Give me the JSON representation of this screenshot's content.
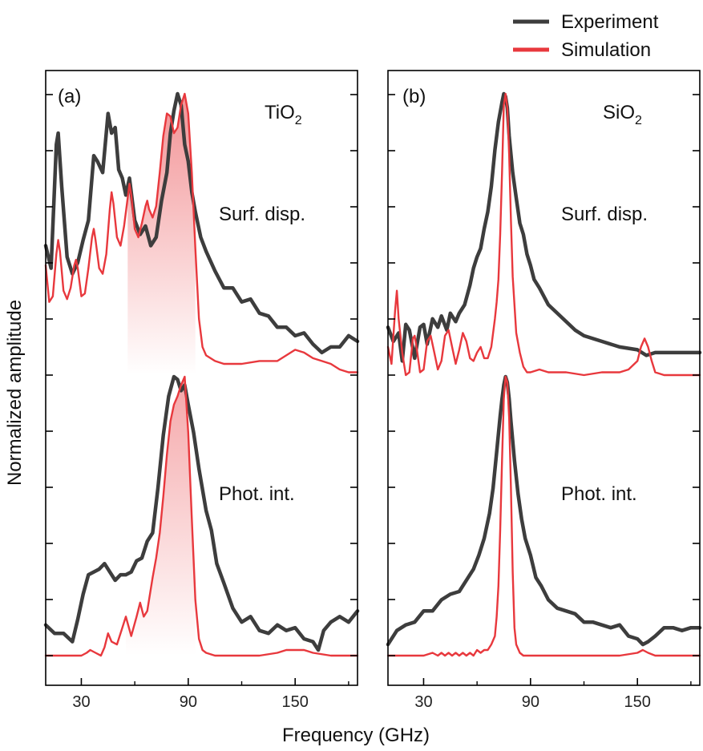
{
  "legend": [
    {
      "label": "Experiment",
      "color": "#3d3d3d"
    },
    {
      "label": "Simulation",
      "color": "#e8383d"
    }
  ],
  "axes": {
    "xlabel": "Frequency (GHz)",
    "ylabel": "Normalized amplitude",
    "xlim": [
      10,
      185
    ],
    "xticks": [
      30,
      90,
      150
    ],
    "xtick_labels": [
      "30",
      "90",
      "150"
    ]
  },
  "chart_data": [
    {
      "type": "line",
      "panel_label": "(a)",
      "material": "TiO",
      "material_sub": "2",
      "xlim": [
        10,
        185
      ],
      "traces": [
        {
          "name": "Experiment",
          "trace": "Surf. disp.",
          "x": [
            10,
            13,
            16,
            17,
            19,
            22,
            25,
            28,
            31,
            34,
            37,
            39,
            42,
            45,
            47,
            49,
            51,
            53,
            55,
            57,
            60,
            63,
            66,
            69,
            72,
            75,
            78,
            80,
            82,
            84,
            86,
            88,
            90,
            92,
            94,
            97,
            100,
            105,
            110,
            115,
            120,
            125,
            130,
            135,
            140,
            145,
            150,
            155,
            160,
            165,
            170,
            175,
            180,
            185
          ],
          "y": [
            0.46,
            0.38,
            0.82,
            0.86,
            0.67,
            0.42,
            0.36,
            0.4,
            0.48,
            0.55,
            0.78,
            0.76,
            0.72,
            0.93,
            0.86,
            0.88,
            0.73,
            0.7,
            0.64,
            0.7,
            0.55,
            0.5,
            0.53,
            0.46,
            0.49,
            0.62,
            0.72,
            0.86,
            0.94,
            1.0,
            0.96,
            0.82,
            0.76,
            0.65,
            0.58,
            0.49,
            0.44,
            0.37,
            0.31,
            0.31,
            0.26,
            0.27,
            0.22,
            0.21,
            0.17,
            0.17,
            0.14,
            0.15,
            0.11,
            0.08,
            0.1,
            0.1,
            0.14,
            0.12
          ]
        },
        {
          "name": "Simulation",
          "trace": "Surf. disp.",
          "x": [
            10,
            12,
            14,
            16,
            17,
            18,
            20,
            22,
            24,
            26,
            27,
            28,
            30,
            32,
            34,
            36,
            37,
            38,
            40,
            42,
            44,
            46,
            47,
            48,
            50,
            52,
            54,
            56,
            57,
            58,
            60,
            62,
            64,
            66,
            67,
            68,
            70,
            72,
            74,
            76,
            78,
            80,
            82,
            84,
            86,
            88,
            90,
            92,
            94,
            96,
            98,
            100,
            105,
            110,
            115,
            120,
            130,
            140,
            145,
            150,
            155,
            160,
            165,
            170,
            175,
            180,
            185
          ],
          "y": [
            0.39,
            0.26,
            0.28,
            0.43,
            0.48,
            0.44,
            0.3,
            0.27,
            0.31,
            0.39,
            0.41,
            0.38,
            0.28,
            0.29,
            0.38,
            0.49,
            0.52,
            0.48,
            0.38,
            0.36,
            0.43,
            0.59,
            0.65,
            0.61,
            0.49,
            0.46,
            0.53,
            0.63,
            0.68,
            0.64,
            0.52,
            0.49,
            0.54,
            0.6,
            0.62,
            0.59,
            0.56,
            0.6,
            0.72,
            0.85,
            0.93,
            0.92,
            0.86,
            0.88,
            0.96,
            1.0,
            0.93,
            0.72,
            0.45,
            0.2,
            0.1,
            0.07,
            0.05,
            0.04,
            0.04,
            0.04,
            0.05,
            0.05,
            0.07,
            0.09,
            0.08,
            0.06,
            0.05,
            0.04,
            0.02,
            0.01,
            0.01
          ]
        },
        {
          "name": "Experiment",
          "trace": "Phot. int.",
          "x": [
            10,
            15,
            20,
            25,
            28,
            31,
            34,
            37,
            40,
            43,
            46,
            49,
            52,
            55,
            58,
            61,
            64,
            67,
            70,
            73,
            76,
            79,
            82,
            84,
            86,
            88,
            90,
            93,
            96,
            100,
            103,
            106,
            110,
            115,
            120,
            125,
            130,
            135,
            140,
            145,
            150,
            155,
            160,
            163,
            166,
            170,
            175,
            180,
            185
          ],
          "y": [
            0.11,
            0.08,
            0.08,
            0.05,
            0.13,
            0.22,
            0.29,
            0.3,
            0.31,
            0.33,
            0.3,
            0.27,
            0.29,
            0.29,
            0.3,
            0.34,
            0.35,
            0.41,
            0.44,
            0.6,
            0.79,
            0.93,
            1.0,
            0.99,
            0.95,
            0.97,
            0.9,
            0.8,
            0.67,
            0.52,
            0.45,
            0.33,
            0.26,
            0.17,
            0.12,
            0.14,
            0.09,
            0.08,
            0.11,
            0.09,
            0.1,
            0.06,
            0.05,
            0.02,
            0.09,
            0.12,
            0.14,
            0.12,
            0.16
          ]
        },
        {
          "name": "Simulation",
          "trace": "Phot. int.",
          "x": [
            10,
            20,
            30,
            33,
            35,
            38,
            41,
            43,
            45,
            47,
            50,
            53,
            55,
            58,
            61,
            63,
            65,
            67,
            70,
            72,
            74,
            76,
            78,
            80,
            82,
            84,
            86,
            88,
            90,
            92,
            94,
            96,
            98,
            100,
            105,
            110,
            120,
            130,
            140,
            145,
            150,
            155,
            160,
            170,
            185
          ],
          "y": [
            0.0,
            0.0,
            0.0,
            0.01,
            0.02,
            0.01,
            0.0,
            0.03,
            0.08,
            0.05,
            0.04,
            0.1,
            0.14,
            0.07,
            0.14,
            0.19,
            0.14,
            0.16,
            0.28,
            0.35,
            0.44,
            0.57,
            0.72,
            0.84,
            0.9,
            0.93,
            0.97,
            1.0,
            0.8,
            0.49,
            0.2,
            0.06,
            0.02,
            0.01,
            0.0,
            0.0,
            0.0,
            0.0,
            0.01,
            0.02,
            0.02,
            0.02,
            0.01,
            0.0,
            0.0
          ]
        }
      ]
    },
    {
      "type": "line",
      "panel_label": "(b)",
      "material": "SiO",
      "material_sub": "2",
      "xlim": [
        10,
        185
      ],
      "traces": [
        {
          "name": "Experiment",
          "trace": "Surf. disp.",
          "x": [
            10,
            13,
            16,
            18,
            20,
            22,
            25,
            28,
            30,
            32,
            35,
            38,
            40,
            43,
            45,
            48,
            50,
            53,
            56,
            58,
            60,
            62,
            64,
            66,
            68,
            70,
            72,
            74,
            75,
            76,
            77,
            78,
            80,
            82,
            84,
            86,
            88,
            90,
            92,
            95,
            100,
            105,
            110,
            115,
            120,
            130,
            140,
            150,
            155,
            160,
            170,
            185
          ],
          "y": [
            0.17,
            0.12,
            0.15,
            0.05,
            0.18,
            0.16,
            0.06,
            0.17,
            0.18,
            0.11,
            0.2,
            0.17,
            0.21,
            0.16,
            0.22,
            0.19,
            0.22,
            0.25,
            0.32,
            0.38,
            0.42,
            0.45,
            0.52,
            0.58,
            0.67,
            0.8,
            0.9,
            0.97,
            1.0,
            0.99,
            0.95,
            0.85,
            0.72,
            0.63,
            0.54,
            0.5,
            0.43,
            0.39,
            0.34,
            0.31,
            0.25,
            0.22,
            0.19,
            0.16,
            0.14,
            0.12,
            0.1,
            0.09,
            0.07,
            0.08,
            0.08,
            0.08
          ]
        },
        {
          "name": "Simulation",
          "trace": "Surf. disp.",
          "x": [
            10,
            12,
            14,
            15,
            16,
            18,
            20,
            22,
            24,
            25,
            26,
            28,
            30,
            32,
            34,
            36,
            38,
            40,
            42,
            44,
            46,
            48,
            50,
            52,
            54,
            56,
            58,
            60,
            62,
            64,
            66,
            68,
            70,
            71,
            72,
            73,
            74,
            75,
            76,
            77,
            78,
            79,
            80,
            82,
            84,
            86,
            88,
            90,
            95,
            100,
            110,
            120,
            130,
            140,
            145,
            150,
            152,
            154,
            156,
            158,
            160,
            165,
            170,
            185
          ],
          "y": [
            0.1,
            0.04,
            0.23,
            0.3,
            0.2,
            0.08,
            0.0,
            0.01,
            0.13,
            0.14,
            0.1,
            0.01,
            0.02,
            0.12,
            0.14,
            0.08,
            0.02,
            0.05,
            0.14,
            0.16,
            0.1,
            0.04,
            0.09,
            0.15,
            0.12,
            0.06,
            0.05,
            0.08,
            0.1,
            0.06,
            0.06,
            0.1,
            0.2,
            0.26,
            0.34,
            0.5,
            0.72,
            0.96,
            1.0,
            0.95,
            0.78,
            0.55,
            0.35,
            0.15,
            0.08,
            0.03,
            0.01,
            0.01,
            0.02,
            0.01,
            0.01,
            0.0,
            0.01,
            0.01,
            0.02,
            0.05,
            0.1,
            0.13,
            0.1,
            0.05,
            0.01,
            0.0,
            0.0,
            0.0
          ]
        },
        {
          "name": "Experiment",
          "trace": "Phot. int.",
          "x": [
            10,
            15,
            20,
            25,
            30,
            35,
            40,
            45,
            50,
            55,
            58,
            61,
            64,
            67,
            69,
            71,
            73,
            74,
            75,
            76,
            77,
            78,
            79,
            81,
            83,
            85,
            87,
            90,
            93,
            96,
            100,
            105,
            110,
            115,
            120,
            125,
            130,
            135,
            140,
            145,
            150,
            153,
            156,
            160,
            165,
            170,
            175,
            180,
            185
          ],
          "y": [
            0.04,
            0.09,
            0.11,
            0.12,
            0.16,
            0.16,
            0.2,
            0.22,
            0.23,
            0.28,
            0.31,
            0.36,
            0.42,
            0.51,
            0.6,
            0.73,
            0.86,
            0.92,
            0.97,
            1.0,
            0.98,
            0.92,
            0.84,
            0.7,
            0.58,
            0.49,
            0.42,
            0.36,
            0.28,
            0.25,
            0.2,
            0.17,
            0.16,
            0.15,
            0.12,
            0.12,
            0.11,
            0.1,
            0.11,
            0.07,
            0.06,
            0.04,
            0.05,
            0.07,
            0.1,
            0.1,
            0.09,
            0.1,
            0.1
          ]
        },
        {
          "name": "Simulation",
          "trace": "Phot. int.",
          "x": [
            10,
            20,
            30,
            35,
            38,
            40,
            42,
            44,
            46,
            48,
            50,
            52,
            54,
            56,
            58,
            60,
            62,
            64,
            66,
            68,
            70,
            71,
            72,
            73,
            74,
            75,
            76,
            77,
            78,
            79,
            80,
            81,
            82,
            84,
            86,
            90,
            100,
            120,
            140,
            150,
            153,
            156,
            160,
            170,
            185
          ],
          "y": [
            0.0,
            0.0,
            0.0,
            0.01,
            0.0,
            0.01,
            0.0,
            0.01,
            0.0,
            0.01,
            0.0,
            0.01,
            0.0,
            0.01,
            0.0,
            0.02,
            0.01,
            0.02,
            0.02,
            0.04,
            0.07,
            0.14,
            0.25,
            0.45,
            0.7,
            0.92,
            1.0,
            0.98,
            0.85,
            0.6,
            0.3,
            0.1,
            0.04,
            0.01,
            0.0,
            0.0,
            0.0,
            0.0,
            0.0,
            0.01,
            0.02,
            0.01,
            0.0,
            0.0,
            0.0
          ]
        }
      ]
    }
  ],
  "panels": [
    {
      "trace_labels": [
        "Surf. disp.",
        "Phot. int."
      ]
    },
    {
      "trace_labels": [
        "Surf. disp.",
        "Phot. int."
      ]
    }
  ]
}
